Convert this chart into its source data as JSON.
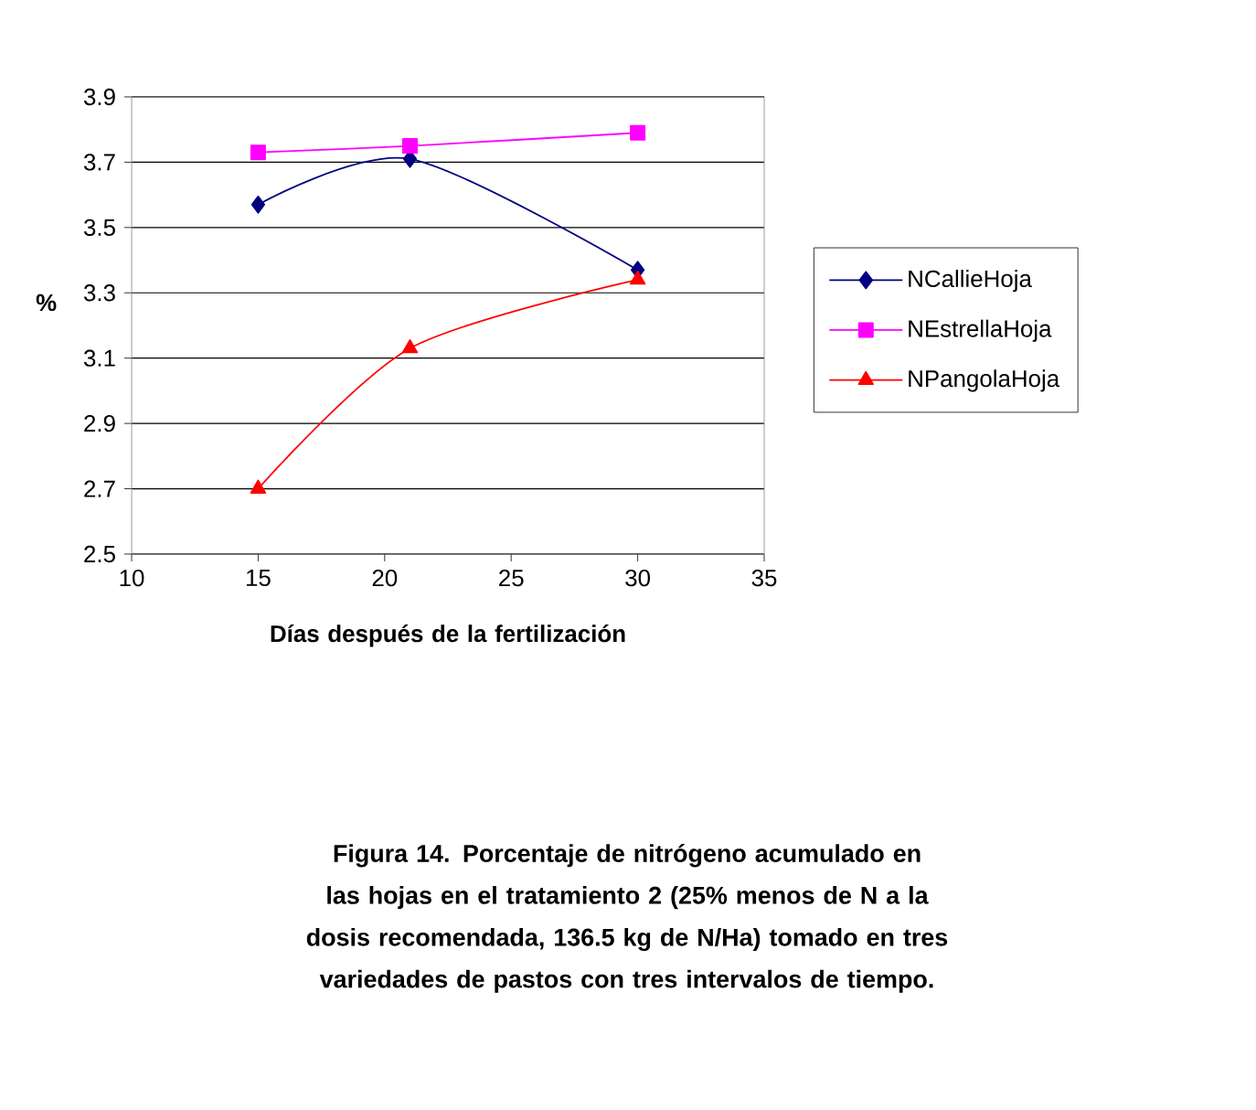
{
  "chart_data": {
    "type": "line",
    "xlabel": "Días después de la fertilización",
    "ylabel": "%",
    "x": [
      15,
      21,
      30
    ],
    "series": [
      {
        "name": "NCallieHoja",
        "color": "#000080",
        "marker": "diamond",
        "values": [
          3.57,
          3.71,
          3.37
        ]
      },
      {
        "name": "NEstrellaHoja",
        "color": "#ff00ff",
        "marker": "square",
        "values": [
          3.73,
          3.75,
          3.79
        ]
      },
      {
        "name": "NPangolaHoja",
        "color": "#ff0000",
        "marker": "triangle",
        "values": [
          2.7,
          3.13,
          3.34
        ]
      }
    ],
    "xlim": [
      10,
      35
    ],
    "xticks": [
      10,
      15,
      20,
      25,
      30,
      35
    ],
    "ylim": [
      2.5,
      3.9
    ],
    "yticks": [
      {
        "value": 2.5,
        "label": "2.5"
      },
      {
        "value": 2.7,
        "label": "2.7"
      },
      {
        "value": 2.9,
        "label": "2.9"
      },
      {
        "value": 3.1,
        "label": "3.1"
      },
      {
        "value": 3.3,
        "label": "3.3"
      },
      {
        "value": 3.5,
        "label": "3.5"
      },
      {
        "value": 3.7,
        "label": "3.7"
      },
      {
        "value": 3.9,
        "label": "3.9"
      }
    ],
    "grid": "y",
    "legend": "right",
    "line_style": "solid",
    "annotations": [
      "Figura 14. Porcentaje de nitrógeno acumulado en las hojas en el tratamiento 2 (25% menos de N a la dosis recomendada, 136.5 kg de N/Ha) tomado  en tres variedades de pastos con tres intervalos de tiempo."
    ]
  }
}
